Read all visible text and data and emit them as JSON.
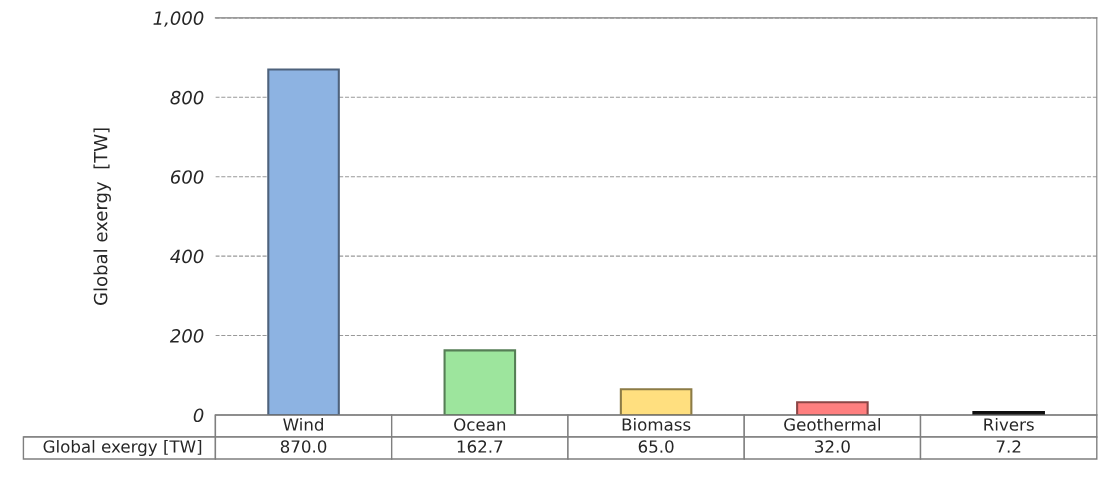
{
  "chart_data": {
    "type": "bar",
    "ylabel": "Global exergy  [TW]",
    "categories": [
      "Wind",
      "Ocean",
      "Biomass",
      "Geothermal",
      "Rivers"
    ],
    "series": [
      {
        "name": "Global exergy [TW]",
        "values": [
          870.0,
          162.7,
          65.0,
          32.0,
          7.2
        ],
        "value_labels": [
          "870.0",
          "162.7",
          "65.0",
          "32.0",
          "7.2"
        ]
      }
    ],
    "colors": [
      "#8db3e2",
      "#9de59d",
      "#ffdf7f",
      "#ff7f7f",
      "#1a1a1a"
    ],
    "ylim": [
      0,
      1000
    ],
    "yticks": [
      0,
      200,
      400,
      600,
      800,
      {
        "value": 1000,
        "label": "1,000"
      }
    ],
    "grid": "y"
  }
}
